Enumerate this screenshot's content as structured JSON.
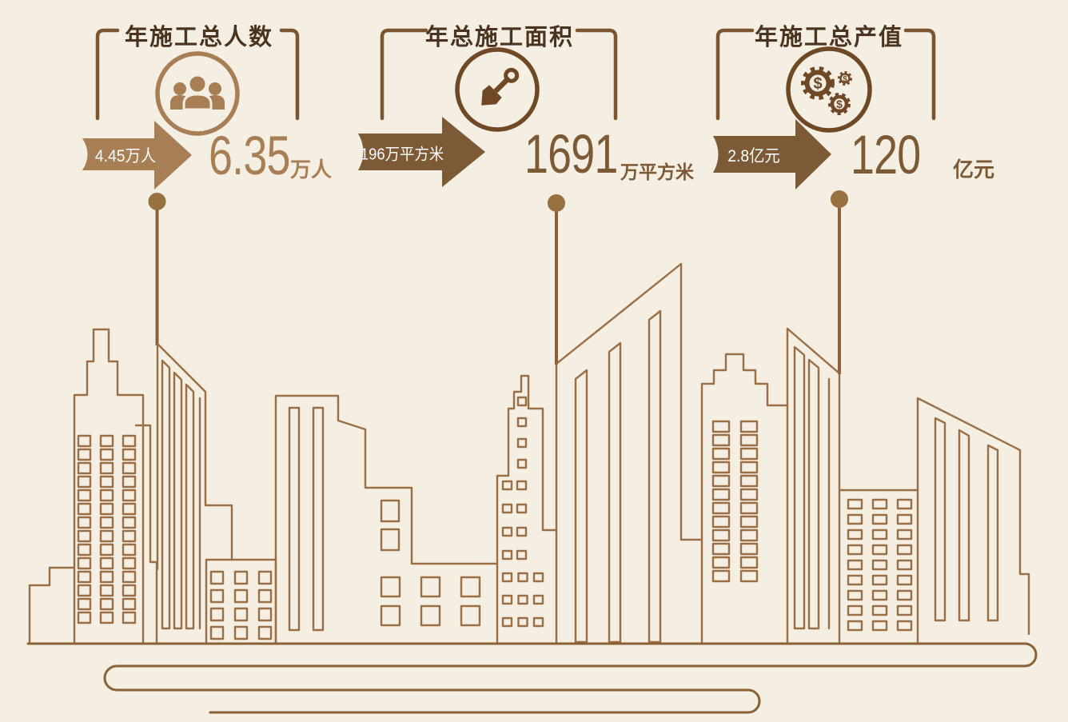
{
  "page": {
    "background_color": "#f4eee3"
  },
  "colors": {
    "tan": "#a87e55",
    "deep_brown": "#7d5a36",
    "icon_brown": "#6f4826",
    "title_brown": "#4a3420",
    "skyline_outline": "#9a6f45",
    "ground_line": "#8a6137",
    "marker_dot": "#97713f",
    "label_white": "#ffffff"
  },
  "panels": [
    {
      "title": "年施工总人数",
      "icon": "people-group-icon",
      "from_value": "4.45万人",
      "to_value": "6.35",
      "to_unit": "万人"
    },
    {
      "title": "年总施工面积",
      "icon": "shovel-icon",
      "from_value": "196万平方米",
      "to_value": "1691",
      "to_unit": "万平方米"
    },
    {
      "title": "年施工总产值",
      "icon": "gears-money-icon",
      "from_value": "2.8亿元",
      "to_value": "120",
      "to_unit": "亿元"
    }
  ],
  "chart_data": {
    "type": "table",
    "title": "",
    "rows": [
      {
        "metric": "年施工总人数",
        "from": "4.45万人",
        "to": "6.35万人"
      },
      {
        "metric": "年总施工面积",
        "from": "196万平方米",
        "to": "1691万平方米"
      },
      {
        "metric": "年施工总产值",
        "from": "2.8亿元",
        "to": "120亿元"
      }
    ]
  }
}
